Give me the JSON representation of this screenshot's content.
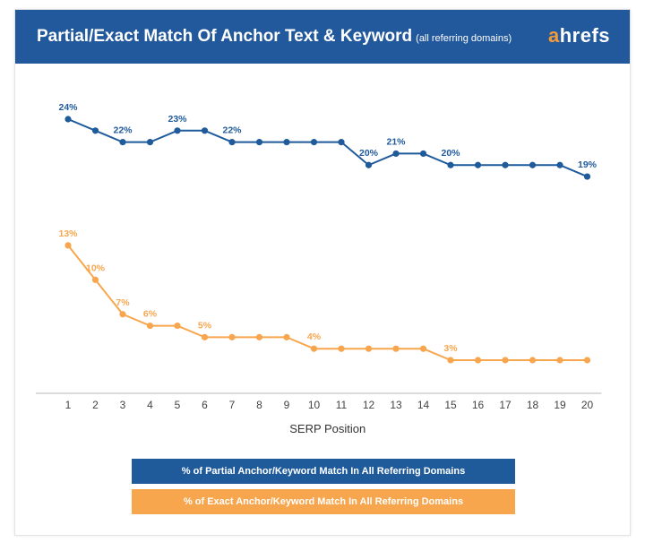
{
  "header": {
    "title": "Partial/Exact Match Of Anchor Text & Keyword",
    "subtitle": "(all referring domains)",
    "logo_a": "a",
    "logo_rest": "hrefs"
  },
  "colors": {
    "header_bg": "#22589c",
    "partial": "#1f5a9b",
    "exact": "#f8a64e",
    "logo_accent": "#f49a37"
  },
  "chart_data": {
    "type": "line",
    "xlabel": "SERP Position",
    "ylabel": "",
    "x": [
      1,
      2,
      3,
      4,
      5,
      6,
      7,
      8,
      9,
      10,
      11,
      12,
      13,
      14,
      15,
      16,
      17,
      18,
      19,
      20
    ],
    "ylim": [
      0,
      26
    ],
    "grid": false,
    "legend_position": "bottom",
    "series": [
      {
        "name": "% of Partial Anchor/Keyword Match In All Referring Domains",
        "color": "#1f5a9b",
        "values": [
          24,
          23,
          22,
          22,
          23,
          23,
          22,
          22,
          22,
          22,
          22,
          20,
          21,
          21,
          20,
          20,
          20,
          20,
          20,
          19
        ],
        "labels": [
          {
            "x": 1,
            "text": "24%"
          },
          {
            "x": 3,
            "text": "22%"
          },
          {
            "x": 5,
            "text": "23%"
          },
          {
            "x": 7,
            "text": "22%"
          },
          {
            "x": 12,
            "text": "20%"
          },
          {
            "x": 13,
            "text": "21%"
          },
          {
            "x": 15,
            "text": "20%"
          },
          {
            "x": 20,
            "text": "19%"
          }
        ]
      },
      {
        "name": "% of Exact Anchor/Keyword Match In All Referring Domains",
        "color": "#f8a64e",
        "values": [
          13,
          10,
          7,
          6,
          6,
          5,
          5,
          5,
          5,
          4,
          4,
          4,
          4,
          4,
          3,
          3,
          3,
          3,
          3,
          3
        ],
        "labels": [
          {
            "x": 1,
            "text": "13%"
          },
          {
            "x": 2,
            "text": "10%"
          },
          {
            "x": 3,
            "text": "7%"
          },
          {
            "x": 4,
            "text": "6%"
          },
          {
            "x": 6,
            "text": "5%"
          },
          {
            "x": 10,
            "text": "4%"
          },
          {
            "x": 15,
            "text": "3%"
          }
        ]
      }
    ]
  }
}
